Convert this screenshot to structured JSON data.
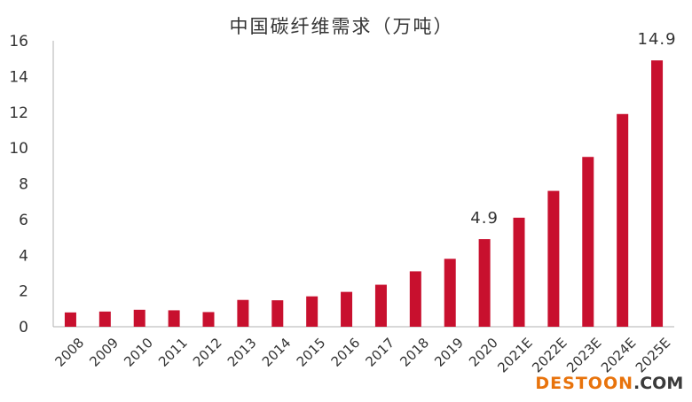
{
  "chart_data": {
    "type": "bar",
    "title": "中国碳纤维需求（万吨）",
    "xlabel": "",
    "ylabel": "",
    "categories": [
      "2008",
      "2009",
      "2010",
      "2011",
      "2012",
      "2013",
      "2014",
      "2015",
      "2016",
      "2017",
      "2018",
      "2019",
      "2020",
      "2021E",
      "2022E",
      "2023E",
      "2024E",
      "2025E"
    ],
    "values": [
      0.8,
      0.85,
      0.95,
      0.92,
      0.82,
      1.5,
      1.48,
      1.7,
      1.95,
      2.35,
      3.1,
      3.8,
      4.9,
      6.1,
      7.6,
      9.5,
      11.9,
      14.9
    ],
    "data_labels": [
      {
        "category": "2020",
        "text": "4.9"
      },
      {
        "category": "2025E",
        "text": "14.9"
      }
    ],
    "ylim": [
      0,
      16
    ],
    "yticks": [
      0,
      2,
      4,
      6,
      8,
      10,
      12,
      14,
      16
    ],
    "bar_color": "#c8102e",
    "grid": false,
    "legend": "none"
  },
  "watermark": {
    "main": "DESTOON",
    "suffix": ".COM",
    "color": "#e8730c"
  }
}
